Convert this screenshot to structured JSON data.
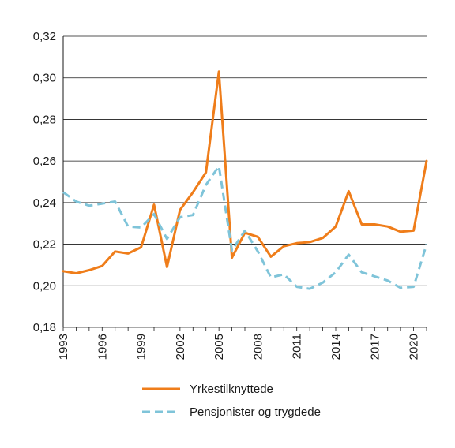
{
  "chart_data": {
    "type": "line",
    "x": [
      1993,
      1994,
      1995,
      1996,
      1997,
      1998,
      1999,
      2000,
      2001,
      2002,
      2003,
      2004,
      2005,
      2006,
      2007,
      2008,
      2009,
      2010,
      2011,
      2012,
      2013,
      2014,
      2015,
      2016,
      2017,
      2018,
      2019,
      2020,
      2021
    ],
    "x_ticks": [
      "1993",
      "1996",
      "1999",
      "2002",
      "2005",
      "2008",
      "2011",
      "2014",
      "2017",
      "2020"
    ],
    "y_ticks": [
      "0,18",
      "0,20",
      "0,22",
      "0,24",
      "0,26",
      "0,28",
      "0,30",
      "0,32"
    ],
    "ylim": [
      0.18,
      0.32
    ],
    "xlim": [
      1993,
      2021
    ],
    "grid": true,
    "legend_position": "bottom",
    "title": "",
    "xlabel": "",
    "ylabel": "",
    "series": [
      {
        "name": "Yrkestilknyttede",
        "color": "#ef7d1a",
        "style": "solid",
        "values": [
          0.207,
          0.206,
          0.2075,
          0.2095,
          0.2165,
          0.2155,
          0.2185,
          0.239,
          0.209,
          0.2365,
          0.245,
          0.2545,
          0.303,
          0.2135,
          0.2255,
          0.2235,
          0.214,
          0.219,
          0.2205,
          0.221,
          0.223,
          0.2285,
          0.2455,
          0.2295,
          0.2295,
          0.2285,
          0.226,
          0.2265,
          0.26
        ]
      },
      {
        "name": "Pensjonister og trygdede",
        "color": "#7fc4d9",
        "style": "dashed",
        "values": [
          0.245,
          0.2405,
          0.2385,
          0.2395,
          0.2405,
          0.2285,
          0.228,
          0.2345,
          0.2225,
          0.233,
          0.234,
          0.2485,
          0.2575,
          0.217,
          0.2265,
          0.2165,
          0.204,
          0.2055,
          0.1995,
          0.1985,
          0.2015,
          0.2065,
          0.215,
          0.2065,
          0.2045,
          0.2025,
          0.199,
          0.1995,
          0.22
        ]
      }
    ]
  }
}
